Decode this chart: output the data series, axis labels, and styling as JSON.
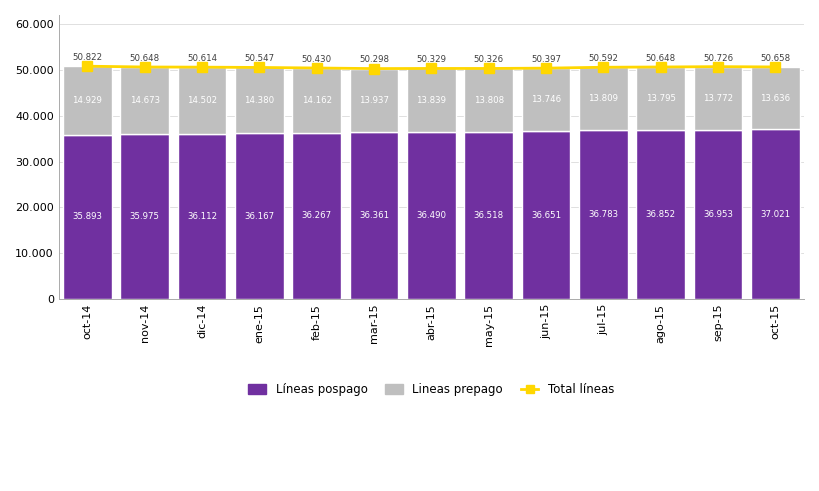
{
  "categories": [
    "oct-14",
    "nov-14",
    "dic-14",
    "ene-15",
    "feb-15",
    "mar-15",
    "abr-15",
    "may-15",
    "jun-15",
    "jul-15",
    "ago-15",
    "sep-15",
    "oct-15"
  ],
  "pospago": [
    35893,
    35975,
    36112,
    36167,
    36267,
    36361,
    36490,
    36518,
    36651,
    36783,
    36852,
    36953,
    37021
  ],
  "prepago": [
    14929,
    14673,
    14502,
    14380,
    14162,
    13937,
    13839,
    13808,
    13746,
    13809,
    13795,
    13772,
    13636
  ],
  "total": [
    50822,
    50648,
    50614,
    50547,
    50430,
    50298,
    50329,
    50326,
    50397,
    50592,
    50648,
    50726,
    50658
  ],
  "pospago_labels": [
    "35.893",
    "35.975",
    "36.112",
    "36.167",
    "36.267",
    "36.361",
    "36.490",
    "36.518",
    "36.651",
    "36.783",
    "36.852",
    "36.953",
    "37.021"
  ],
  "prepago_labels": [
    "14.929",
    "14.673",
    "14.502",
    "14.380",
    "14.162",
    "13.937",
    "13.839",
    "13.808",
    "13.746",
    "13.809",
    "13.795",
    "13.772",
    "13.636"
  ],
  "total_labels": [
    "50.822",
    "50.648",
    "50.614",
    "50.547",
    "50.430",
    "50.298",
    "50.329",
    "50.326",
    "50.397",
    "50.592",
    "50.648",
    "50.726",
    "50.658"
  ],
  "pospago_color": "#7030A0",
  "prepago_color": "#BFBFBF",
  "total_color": "#FFD700",
  "bar_edge_color": "#FFFFFF",
  "ylim": [
    0,
    62000
  ],
  "yticks": [
    0,
    10000,
    20000,
    30000,
    40000,
    50000,
    60000
  ],
  "ytick_labels": [
    "0",
    "10.000",
    "20.000",
    "30.000",
    "40.000",
    "50.000",
    "60.000"
  ],
  "legend_pospago": "Líneas pospago",
  "legend_prepago": "Lineas prepago",
  "legend_total": "Total líneas",
  "bg_color": "#FFFFFF",
  "grid_color": "#E0E0E0"
}
